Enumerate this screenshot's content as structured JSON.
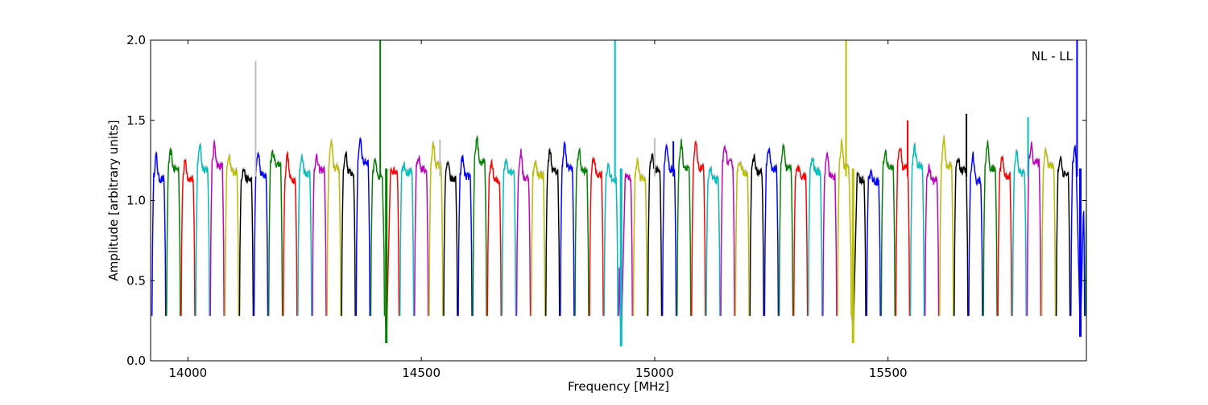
{
  "chart_data": {
    "type": "line",
    "title": "",
    "xlabel": "Frequency [MHz]",
    "ylabel": "Amplitude [arbitrary units]",
    "annotation": "NL - LL",
    "xlim": [
      13920,
      15925
    ],
    "ylim": [
      0.0,
      2.0
    ],
    "x_ticks": [
      14000,
      14500,
      15000,
      15500
    ],
    "y_ticks": [
      0.0,
      0.5,
      1.0,
      1.5,
      2.0
    ],
    "x_tick_labels": [
      "14000",
      "14500",
      "15000",
      "15500"
    ],
    "y_tick_labels": [
      "0.0",
      "0.5",
      "1.0",
      "1.5",
      "2.0"
    ],
    "grid": false,
    "legend": "none",
    "band_width_mhz": 31.25,
    "color_cycle": [
      "#0000ff",
      "#008000",
      "#ff0000",
      "#00bfbf",
      "#bf00bf",
      "#bfbf00",
      "#000000"
    ],
    "background_color": "#c0c0c0",
    "spikes": [
      {
        "x": 14145,
        "y": 1.87,
        "color": "#c0c0c0"
      },
      {
        "x": 14412,
        "y": 2.0,
        "color": "#008000"
      },
      {
        "x": 14540,
        "y": 1.38,
        "color": "#c0c0c0"
      },
      {
        "x": 14915,
        "y": 2.0,
        "color": "#00bfbf"
      },
      {
        "x": 15000,
        "y": 1.39,
        "color": "#c0c0c0"
      },
      {
        "x": 15040,
        "y": 1.37,
        "color": "#0000ff"
      },
      {
        "x": 15410,
        "y": 2.0,
        "color": "#bfbf00"
      },
      {
        "x": 15542,
        "y": 1.5,
        "color": "#ff0000"
      },
      {
        "x": 15668,
        "y": 1.54,
        "color": "#000000"
      },
      {
        "x": 15800,
        "y": 1.52,
        "color": "#00bfbf"
      },
      {
        "x": 15905,
        "y": 2.0,
        "color": "#0000ff"
      }
    ],
    "deep_dips": [
      {
        "x": 14425,
        "y": 0.11,
        "color": "#008000"
      },
      {
        "x": 14928,
        "y": 0.09,
        "color": "#00bfbf"
      },
      {
        "x": 15425,
        "y": 0.11,
        "color": "#bfbf00"
      },
      {
        "x": 15912,
        "y": 0.15,
        "color": "#0000ff"
      }
    ],
    "series": [
      {
        "color_cycle_index": 0,
        "x": [
          13925,
          13930,
          13935,
          13940,
          13945,
          13950,
          13955
        ],
        "values": [
          0.3,
          1.28,
          1.35,
          1.2,
          1.02,
          0.3,
          0.24
        ]
      },
      {
        "color_cycle_index": 1,
        "x": [
          13958,
          13963,
          13968,
          13973,
          13978,
          13983,
          13988
        ],
        "values": [
          0.3,
          1.1,
          1.22,
          1.25,
          1.21,
          1.18,
          0.27
        ]
      }
    ]
  }
}
